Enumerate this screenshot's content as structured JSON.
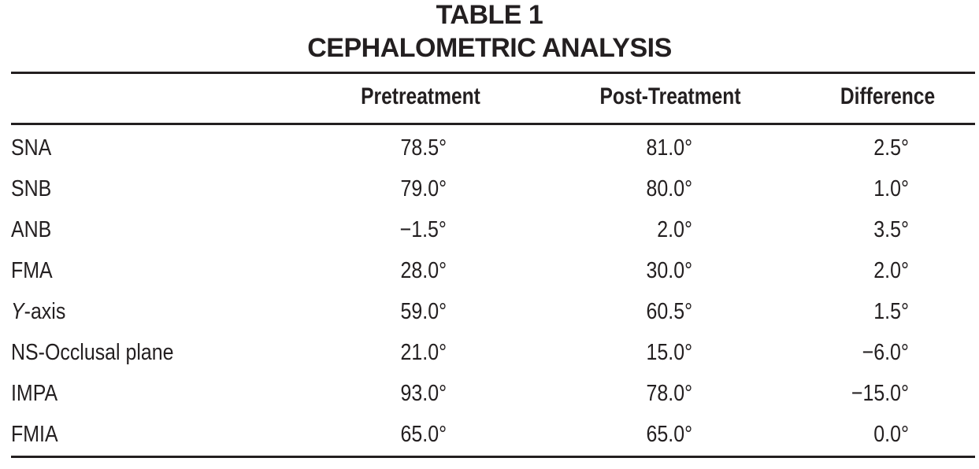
{
  "table": {
    "title": "TABLE 1",
    "subtitle": "CEPHALOMETRIC ANALYSIS",
    "headers": [
      "Pretreatment",
      "Post-Treatment",
      "Difference"
    ],
    "rows": [
      {
        "label": "SNA",
        "pre": "78.5°",
        "post": "81.0°",
        "diff": "2.5°"
      },
      {
        "label": "SNB",
        "pre": "79.0°",
        "post": "80.0°",
        "diff": "1.0°"
      },
      {
        "label": "ANB",
        "pre": "−1.5°",
        "post": "2.0°",
        "diff": "3.5°"
      },
      {
        "label": "FMA",
        "pre": "28.0°",
        "post": "30.0°",
        "diff": "2.0°"
      },
      {
        "label_italic": "Y",
        "label_rest": "-axis",
        "pre": "59.0°",
        "post": "60.5°",
        "diff": "1.5°"
      },
      {
        "label": "NS-Occlusal plane",
        "pre": "21.0°",
        "post": "15.0°",
        "diff": "−6.0°"
      },
      {
        "label": "IMPA",
        "pre": "93.0°",
        "post": "78.0°",
        "diff": "−15.0°"
      },
      {
        "label": "FMIA",
        "pre": "65.0°",
        "post": "65.0°",
        "diff": "0.0°"
      }
    ]
  }
}
